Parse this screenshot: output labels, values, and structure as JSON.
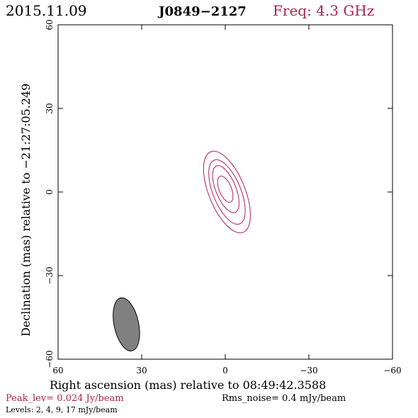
{
  "header": {
    "date": "2015.11.09",
    "source": "J0849−2127",
    "freq": "Freq: 4.3 GHz"
  },
  "axes": {
    "xlabel": "Right ascension (mas) relative to 08:49:42.3588",
    "ylabel": "Declination (mas) relative to −21:27:05.249"
  },
  "footer": {
    "peak": "Peak_lev=  0.024 Jy/beam",
    "rms": "Rms_noise=   0.4 mJy/beam",
    "levels": "Levels:   2,    4,    9,   17 mJy/beam"
  },
  "colors": {
    "contour": "#b0204f",
    "beam_fill": "#808080",
    "freq_text": "#b0204f"
  },
  "chart_data": {
    "type": "contour",
    "xlim": [
      60,
      -60
    ],
    "ylim": [
      -60,
      60
    ],
    "xticks": [
      60,
      30,
      0,
      -30,
      -60
    ],
    "yticks": [
      -60,
      -30,
      0,
      30,
      60
    ],
    "xtick_labels": [
      "60",
      "30",
      "0",
      "−30",
      "−60"
    ],
    "ytick_labels": [
      "−60",
      "−30",
      "0",
      "30",
      "60"
    ],
    "peak_jy_per_beam": 0.024,
    "rms_noise_mjy_per_beam": 0.4,
    "levels_mjy_per_beam": [
      2,
      4,
      9,
      17
    ],
    "contours": [
      {
        "level": 2,
        "center": [
          -0.6,
          0.0
        ],
        "semi_major": 15.6,
        "semi_minor": 6.5,
        "pa_deg": -22
      },
      {
        "level": 4,
        "center": [
          -0.6,
          0.0
        ],
        "semi_major": 12.3,
        "semi_minor": 5.0,
        "pa_deg": -22
      },
      {
        "level": 9,
        "center": [
          -0.2,
          1.0
        ],
        "semi_major": 9.0,
        "semi_minor": 3.6,
        "pa_deg": -22
      },
      {
        "level": 17,
        "center": [
          0.0,
          1.0
        ],
        "semi_major": 5.0,
        "semi_minor": 2.2,
        "pa_deg": -22
      }
    ],
    "beam": {
      "center": [
        35.5,
        -47.5
      ],
      "semi_major": 9.7,
      "semi_minor": 4.4,
      "pa_deg": -12
    }
  }
}
